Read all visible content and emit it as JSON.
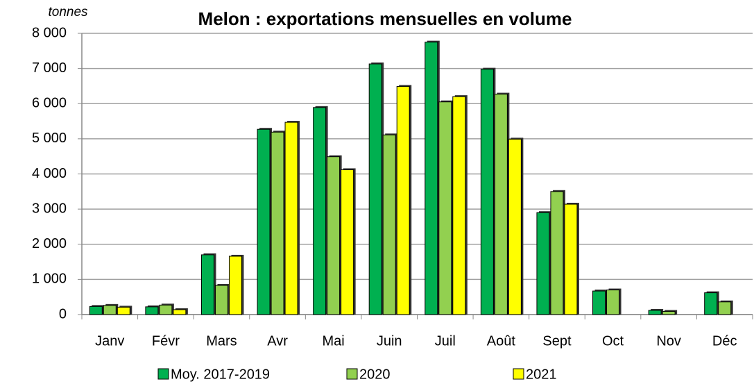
{
  "chart_data": {
    "type": "bar",
    "title": "Melon : exportations mensuelles en volume",
    "y_axis_label": "tonnes",
    "categories": [
      "Janv",
      "Févr",
      "Mars",
      "Avr",
      "Mai",
      "Juin",
      "Juil",
      "Août",
      "Sept",
      "Oct",
      "Nov",
      "Déc"
    ],
    "series": [
      {
        "name": "Moy. 2017-2019",
        "color": "#00b050",
        "values": [
          230,
          220,
          1700,
          5270,
          5890,
          7130,
          7750,
          6980,
          2900,
          670,
          120,
          620
        ]
      },
      {
        "name": "2020",
        "color": "#92d050",
        "values": [
          260,
          270,
          830,
          5190,
          4490,
          5110,
          6050,
          6270,
          3500,
          700,
          90,
          360
        ]
      },
      {
        "name": "2021",
        "color": "#ffff00",
        "values": [
          210,
          140,
          1660,
          5470,
          4120,
          6490,
          6200,
          4990,
          3140,
          null,
          null,
          null
        ]
      }
    ],
    "ylim": [
      0,
      8000
    ],
    "yticks": [
      0,
      {
        "value": 1000,
        "label": "1 000"
      },
      {
        "value": 2000,
        "label": "2 000"
      },
      {
        "value": 3000,
        "label": "3 000"
      },
      {
        "value": 4000,
        "label": "4 000"
      },
      {
        "value": 5000,
        "label": "5 000"
      },
      {
        "value": 6000,
        "label": "6 000"
      },
      {
        "value": 7000,
        "label": "7 000"
      },
      {
        "value": 8000,
        "label": "8 000"
      }
    ],
    "grid": true,
    "legend": "bottom"
  }
}
